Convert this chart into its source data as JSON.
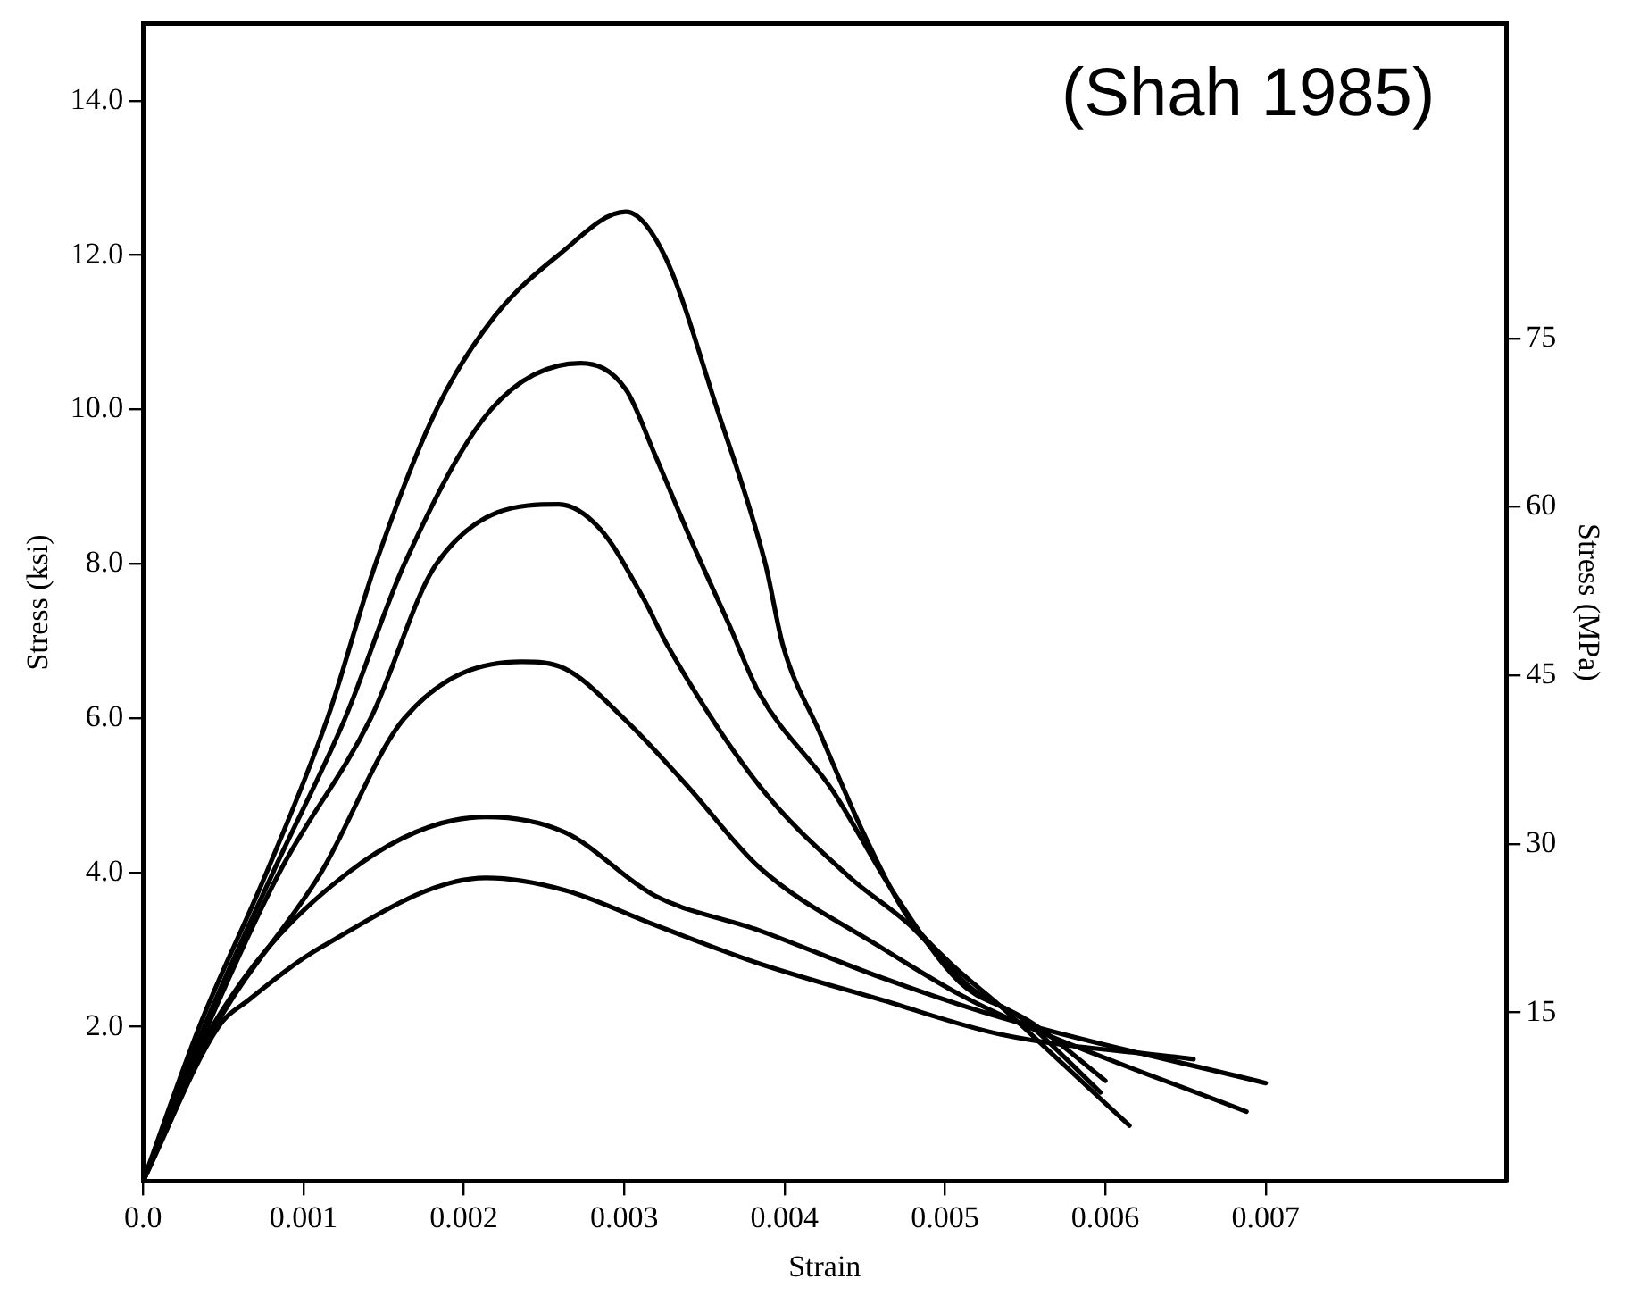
{
  "chart_data": {
    "type": "line",
    "xlabel": "Strain",
    "ylabel": "Stress (ksi)",
    "y2label": "Stress (MPa)",
    "annotations": [
      "(Shah 1985)"
    ],
    "series": [
      {
        "color": "#000000",
        "x": [
          0,
          0.00035,
          0.00077,
          0.00115,
          0.00145,
          0.00183,
          0.00219,
          0.00259,
          0.00301,
          0.00325,
          0.00358,
          0.00388,
          0.00399,
          0.00422,
          0.00449,
          0.00475,
          0.00501,
          0.00535,
          0.00574,
          0.00615
        ],
        "values": [
          0,
          2.0,
          4.0,
          6.0,
          8.0,
          10.0,
          11.2,
          12.0,
          12.56,
          12.0,
          10.0,
          8.0,
          6.94,
          5.81,
          4.52,
          3.48,
          2.87,
          2.26,
          1.51,
          0.72
        ]
      },
      {
        "color": "#000000",
        "x": [
          0,
          0.00038,
          0.00081,
          0.00126,
          0.00163,
          0.00217,
          0.00273,
          0.00301,
          0.00319,
          0.00342,
          0.00365,
          0.00384,
          0.0043,
          0.00467,
          0.00509,
          0.00547,
          0.00597
        ],
        "values": [
          0,
          2.0,
          4.0,
          6.0,
          8.0,
          10.0,
          10.6,
          10.26,
          9.42,
          8.29,
          7.23,
          6.33,
          5.06,
          3.77,
          2.58,
          2.12,
          1.15
        ]
      },
      {
        "color": "#000000",
        "x": [
          0,
          0.0004,
          0.00085,
          0.00142,
          0.00183,
          0.00259,
          0.00285,
          0.00312,
          0.00327,
          0.00384,
          0.00441,
          0.00478,
          0.00517,
          0.00555,
          0.006
        ],
        "values": [
          0,
          2.0,
          4.0,
          6.0,
          8.0,
          8.77,
          8.45,
          7.55,
          6.94,
          5.13,
          3.93,
          3.32,
          2.49,
          2.04,
          1.3
        ]
      },
      {
        "color": "#000000",
        "x": [
          0,
          0.00045,
          0.00111,
          0.00163,
          0.00236,
          0.00263,
          0.00301,
          0.00339,
          0.00384,
          0.0046,
          0.00509,
          0.00547,
          0.00688
        ],
        "values": [
          0,
          2.0,
          4.0,
          6.0,
          6.73,
          6.64,
          5.97,
          5.13,
          4.07,
          3.03,
          2.42,
          2.04,
          0.9
        ]
      },
      {
        "color": "#000000",
        "x": [
          0,
          0.00043,
          0.00128,
          0.00214,
          0.00263,
          0.00319,
          0.00384,
          0.0046,
          0.00535,
          0.007
        ],
        "values": [
          0,
          2.0,
          4.0,
          4.72,
          4.52,
          3.7,
          3.25,
          2.64,
          2.12,
          1.27
        ]
      },
      {
        "color": "#000000",
        "x": [
          0,
          0.00047,
          0.00066,
          0.00111,
          0.00214,
          0.00263,
          0.00319,
          0.00384,
          0.0046,
          0.00535,
          0.00655
        ],
        "values": [
          0,
          2.0,
          2.35,
          3.03,
          3.93,
          3.77,
          3.32,
          2.82,
          2.35,
          1.9,
          1.58
        ]
      }
    ],
    "xlim": [
      0,
      0.0085
    ],
    "xticks": [
      {
        "value": 0,
        "label": "0.0"
      },
      0.001,
      0.002,
      0.003,
      0.004,
      0.005,
      0.006,
      0.007
    ],
    "ylim": [
      0,
      15
    ],
    "yticks": [
      {
        "value": 2,
        "label": "2.0"
      },
      {
        "value": 4,
        "label": "4.0"
      },
      {
        "value": 6,
        "label": "6.0"
      },
      {
        "value": 8,
        "label": "8.0"
      },
      {
        "value": 10,
        "label": "10.0"
      },
      {
        "value": 12,
        "label": "12.0"
      },
      {
        "value": 14,
        "label": "14.0"
      }
    ],
    "y2lim": [
      0,
      103
    ],
    "y2ticks": [
      15,
      30,
      45,
      60,
      75
    ],
    "grid": false,
    "legend": false,
    "marker": "none",
    "line_style": "solid"
  }
}
